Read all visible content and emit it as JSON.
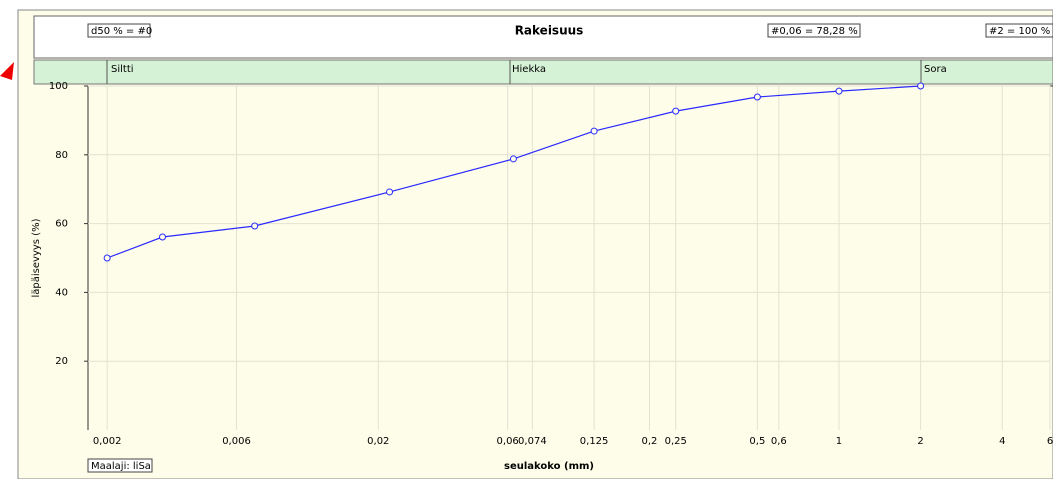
{
  "chart_data": {
    "type": "line",
    "title": "Rakeisuus",
    "header_left": "d50 % = #0",
    "header_mid": "#0,06 = 78,28 %",
    "header_right": "#2 = 100 %",
    "bands": [
      "Siltti",
      "Hiekka",
      "Sora"
    ],
    "xlabel": "seulakoko (mm)",
    "ylabel": "läpäisevyys (%)",
    "footer": "Maalaji: liSa",
    "log_x": true,
    "grid": true,
    "xlim": [
      0.0017,
      6
    ],
    "ylim": [
      0,
      100
    ],
    "yticks": [
      20,
      40,
      60,
      80,
      100
    ],
    "xticks": [
      {
        "value": 0.002,
        "label": "0,002"
      },
      {
        "value": 0.006,
        "label": "0,006"
      },
      {
        "value": 0.02,
        "label": "0,02"
      },
      {
        "value": 0.06,
        "label": "0,06"
      },
      {
        "value": 0.074,
        "label": "0,074"
      },
      {
        "value": 0.125,
        "label": "0,125"
      },
      {
        "value": 0.2,
        "label": "0,2"
      },
      {
        "value": 0.25,
        "label": "0,25"
      },
      {
        "value": 0.5,
        "label": "0,5"
      },
      {
        "value": 0.6,
        "label": "0,6"
      },
      1,
      2,
      4,
      6
    ],
    "x": [
      0.002,
      0.0032,
      0.007,
      0.022,
      0.063,
      0.125,
      0.25,
      0.5,
      1,
      2
    ],
    "series": [
      {
        "name": "läpäisevyys",
        "color": "#2a2aff",
        "values": [
          50.0,
          56.1,
          59.3,
          69.2,
          78.8,
          86.9,
          92.7,
          96.8,
          98.5,
          100
        ]
      }
    ]
  }
}
